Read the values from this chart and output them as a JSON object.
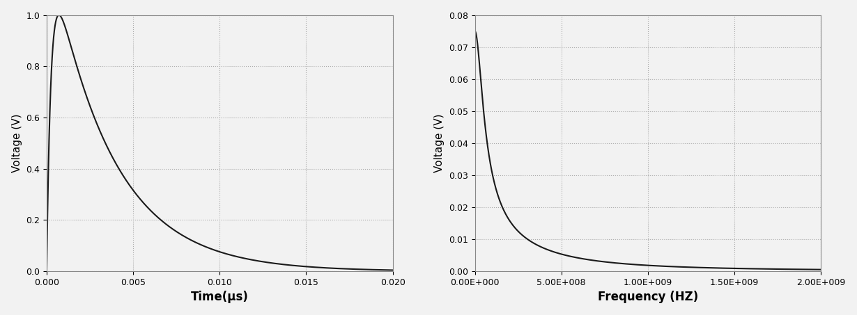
{
  "plot1": {
    "xlabel": "Time(μs)",
    "ylabel": "Voltage (V)",
    "xlim": [
      0.0,
      0.02
    ],
    "ylim": [
      0.0,
      1.0
    ],
    "xticks": [
      0.0,
      0.005,
      0.01,
      0.015,
      0.02
    ],
    "yticks": [
      0.0,
      0.2,
      0.4,
      0.6,
      0.8,
      1.0
    ],
    "line_color": "#1a1a1a",
    "tau1": 0.00025,
    "tau2": 0.0035
  },
  "plot2": {
    "xlabel": "Frequency (HZ)",
    "ylabel": "Voltage (V)",
    "xlim": [
      0.0,
      2000000000.0
    ],
    "ylim": [
      0.0,
      0.08
    ],
    "xticks": [
      0.0,
      500000000.0,
      1000000000.0,
      1500000000.0,
      2000000000.0
    ],
    "yticks": [
      0.0,
      0.01,
      0.02,
      0.03,
      0.04,
      0.05,
      0.06,
      0.07,
      0.08
    ],
    "line_color": "#1a1a1a",
    "tau1_s": 2.5e-10,
    "tau2_s": 3.5e-09,
    "scale": 0.075
  },
  "background_color": "#f2f2f2",
  "grid_color": "#aaaaaa",
  "grid_linestyle": ":",
  "grid_linewidth": 0.8,
  "xlabel_fontsize": 12,
  "ylabel_fontsize": 11,
  "tick_fontsize": 9,
  "line_width": 1.5
}
